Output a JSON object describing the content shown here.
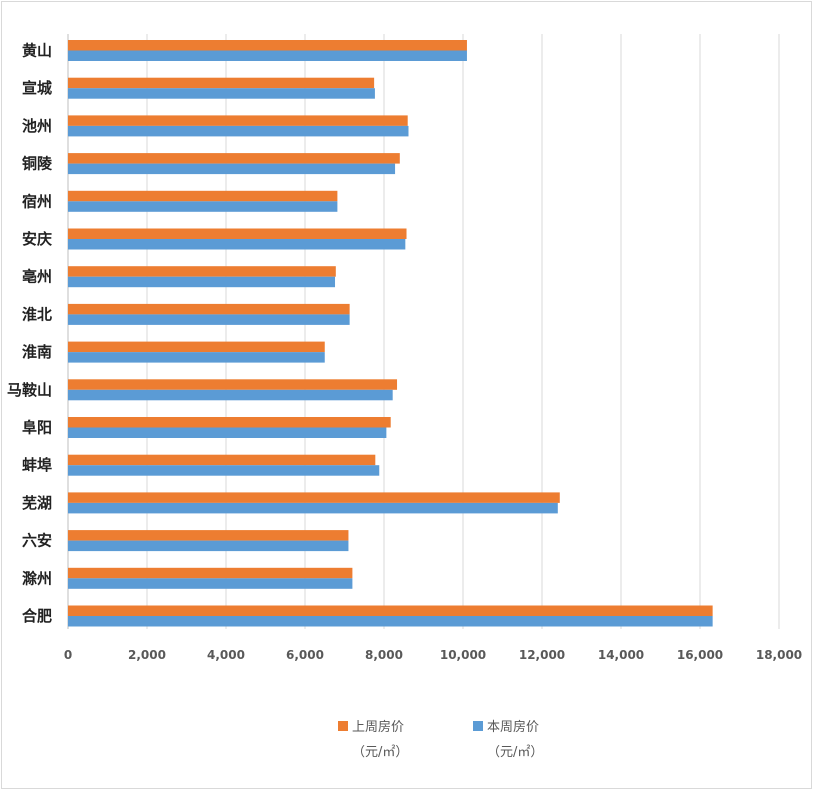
{
  "chart_data": {
    "type": "bar",
    "orientation": "horizontal",
    "categories": [
      "黄山",
      "宣城",
      "池州",
      "铜陵",
      "宿州",
      "安庆",
      "亳州",
      "淮北",
      "淮南",
      "马鞍山",
      "阜阳",
      "蚌埠",
      "芜湖",
      "六安",
      "滁州",
      "合肥"
    ],
    "series": [
      {
        "name": "上周房价",
        "unit": "（元/㎡）",
        "color": "#ED7D31",
        "values": [
          10100,
          7750,
          8600,
          8400,
          6820,
          8570,
          6780,
          7130,
          6500,
          8330,
          8170,
          7780,
          12450,
          7100,
          7200,
          16320
        ]
      },
      {
        "name": "本周房价",
        "unit": "（元/㎡）",
        "color": "#5B9BD5",
        "values": [
          10100,
          7770,
          8620,
          8280,
          6820,
          8540,
          6760,
          7130,
          6500,
          8220,
          8060,
          7880,
          12400,
          7100,
          7200,
          16320
        ]
      }
    ],
    "xlim": [
      0,
      18000
    ],
    "xticks": [
      "0",
      "2,000",
      "4,000",
      "6,000",
      "8,000",
      "10,000",
      "12,000",
      "14,000",
      "16,000",
      "18,000"
    ],
    "grid": true,
    "legend_position": "bottom"
  }
}
